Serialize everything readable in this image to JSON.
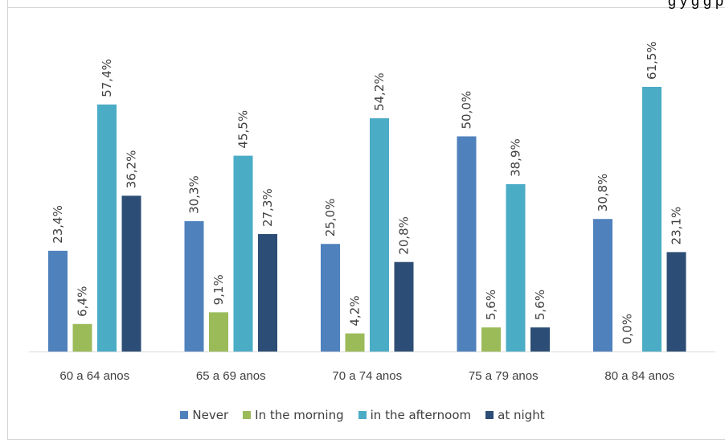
{
  "header_fragment": "g                                        y g  g  p",
  "chart_data": {
    "type": "bar",
    "title": "",
    "xlabel": "",
    "ylabel": "",
    "ylim": [
      0,
      70
    ],
    "grid": false,
    "legend_position": "bottom",
    "categories": [
      "60 a 64 anos",
      "65 a 69 anos",
      "70 a 74 anos",
      "75 a 79 anos",
      "80 a 84 anos"
    ],
    "series": [
      {
        "name": "Never",
        "color": "#4f81bd",
        "values": [
          23.4,
          30.3,
          25.0,
          50.0,
          30.8
        ],
        "labels": [
          "23,4%",
          "30,3%",
          "25,0%",
          "50,0%",
          "30,8%"
        ]
      },
      {
        "name": "In the morning",
        "color": "#9bbb59",
        "values": [
          6.4,
          9.1,
          4.2,
          5.6,
          0.0
        ],
        "labels": [
          "6,4%",
          "9,1%",
          "4,2%",
          "5,6%",
          "0,0%"
        ]
      },
      {
        "name": "in the afternoom",
        "color": "#4bacc6",
        "values": [
          57.4,
          45.5,
          54.2,
          38.9,
          61.5
        ],
        "labels": [
          "57,4%",
          "45,5%",
          "54,2%",
          "38,9%",
          "61,5%"
        ]
      },
      {
        "name": "at night",
        "color": "#2c4d75",
        "values": [
          36.2,
          27.3,
          20.8,
          5.6,
          23.1
        ],
        "labels": [
          "36,2%",
          "27,3%",
          "20,8%",
          "5,6%",
          "23,1%"
        ]
      }
    ]
  }
}
